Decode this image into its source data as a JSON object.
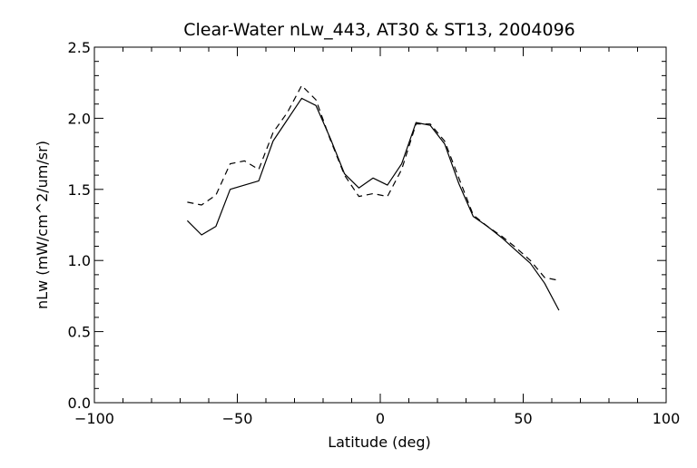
{
  "chart_data": {
    "type": "line",
    "title": "Clear-Water nLw_443, AT30 & ST13, 2004096",
    "xlabel": "Latitude (deg)",
    "ylabel": "nLw (mW/cm^2/um/sr)",
    "xlim": [
      -100,
      100
    ],
    "ylim": [
      0.0,
      2.5
    ],
    "x_ticks": [
      -100,
      -50,
      0,
      50,
      100
    ],
    "x_tick_labels": [
      "−100",
      "−50",
      "0",
      "50",
      "100"
    ],
    "y_ticks": [
      0.0,
      0.5,
      1.0,
      1.5,
      2.0,
      2.5
    ],
    "y_tick_labels": [
      "0.0",
      "0.5",
      "1.0",
      "1.5",
      "2.0",
      "2.5"
    ],
    "grid": false,
    "series": [
      {
        "style": "solid",
        "color": "#000000",
        "points": [
          [
            -67.5,
            1.28
          ],
          [
            -62.5,
            1.18
          ],
          [
            -57.5,
            1.24
          ],
          [
            -52.5,
            1.5
          ],
          [
            -47.5,
            1.53
          ],
          [
            -42.5,
            1.56
          ],
          [
            -37.5,
            1.84
          ],
          [
            -32.5,
            1.99
          ],
          [
            -27.5,
            2.14
          ],
          [
            -22.5,
            2.09
          ],
          [
            -17.5,
            1.86
          ],
          [
            -12.5,
            1.61
          ],
          [
            -7.5,
            1.51
          ],
          [
            -2.5,
            1.58
          ],
          [
            2.5,
            1.53
          ],
          [
            7.5,
            1.68
          ],
          [
            12.5,
            1.97
          ],
          [
            17.5,
            1.95
          ],
          [
            22.5,
            1.82
          ],
          [
            27.5,
            1.54
          ],
          [
            32.5,
            1.31
          ],
          [
            37.5,
            1.24
          ],
          [
            42.5,
            1.16
          ],
          [
            47.5,
            1.07
          ],
          [
            52.5,
            0.98
          ],
          [
            57.5,
            0.84
          ],
          [
            62.5,
            0.65
          ]
        ]
      },
      {
        "style": "dashed",
        "color": "#000000",
        "points": [
          [
            -67.5,
            1.41
          ],
          [
            -62.5,
            1.39
          ],
          [
            -57.5,
            1.46
          ],
          [
            -52.5,
            1.68
          ],
          [
            -47.5,
            1.7
          ],
          [
            -42.5,
            1.64
          ],
          [
            -37.5,
            1.9
          ],
          [
            -32.5,
            2.04
          ],
          [
            -27.5,
            2.23
          ],
          [
            -22.5,
            2.13
          ],
          [
            -17.5,
            1.85
          ],
          [
            -12.5,
            1.6
          ],
          [
            -7.5,
            1.45
          ],
          [
            -2.5,
            1.47
          ],
          [
            2.5,
            1.45
          ],
          [
            7.5,
            1.64
          ],
          [
            12.5,
            1.96
          ],
          [
            17.5,
            1.96
          ],
          [
            22.5,
            1.84
          ],
          [
            27.5,
            1.58
          ],
          [
            32.5,
            1.32
          ],
          [
            37.5,
            1.24
          ],
          [
            42.5,
            1.17
          ],
          [
            47.5,
            1.09
          ],
          [
            52.5,
            1.0
          ],
          [
            57.5,
            0.88
          ],
          [
            62.5,
            0.86
          ]
        ]
      }
    ]
  }
}
